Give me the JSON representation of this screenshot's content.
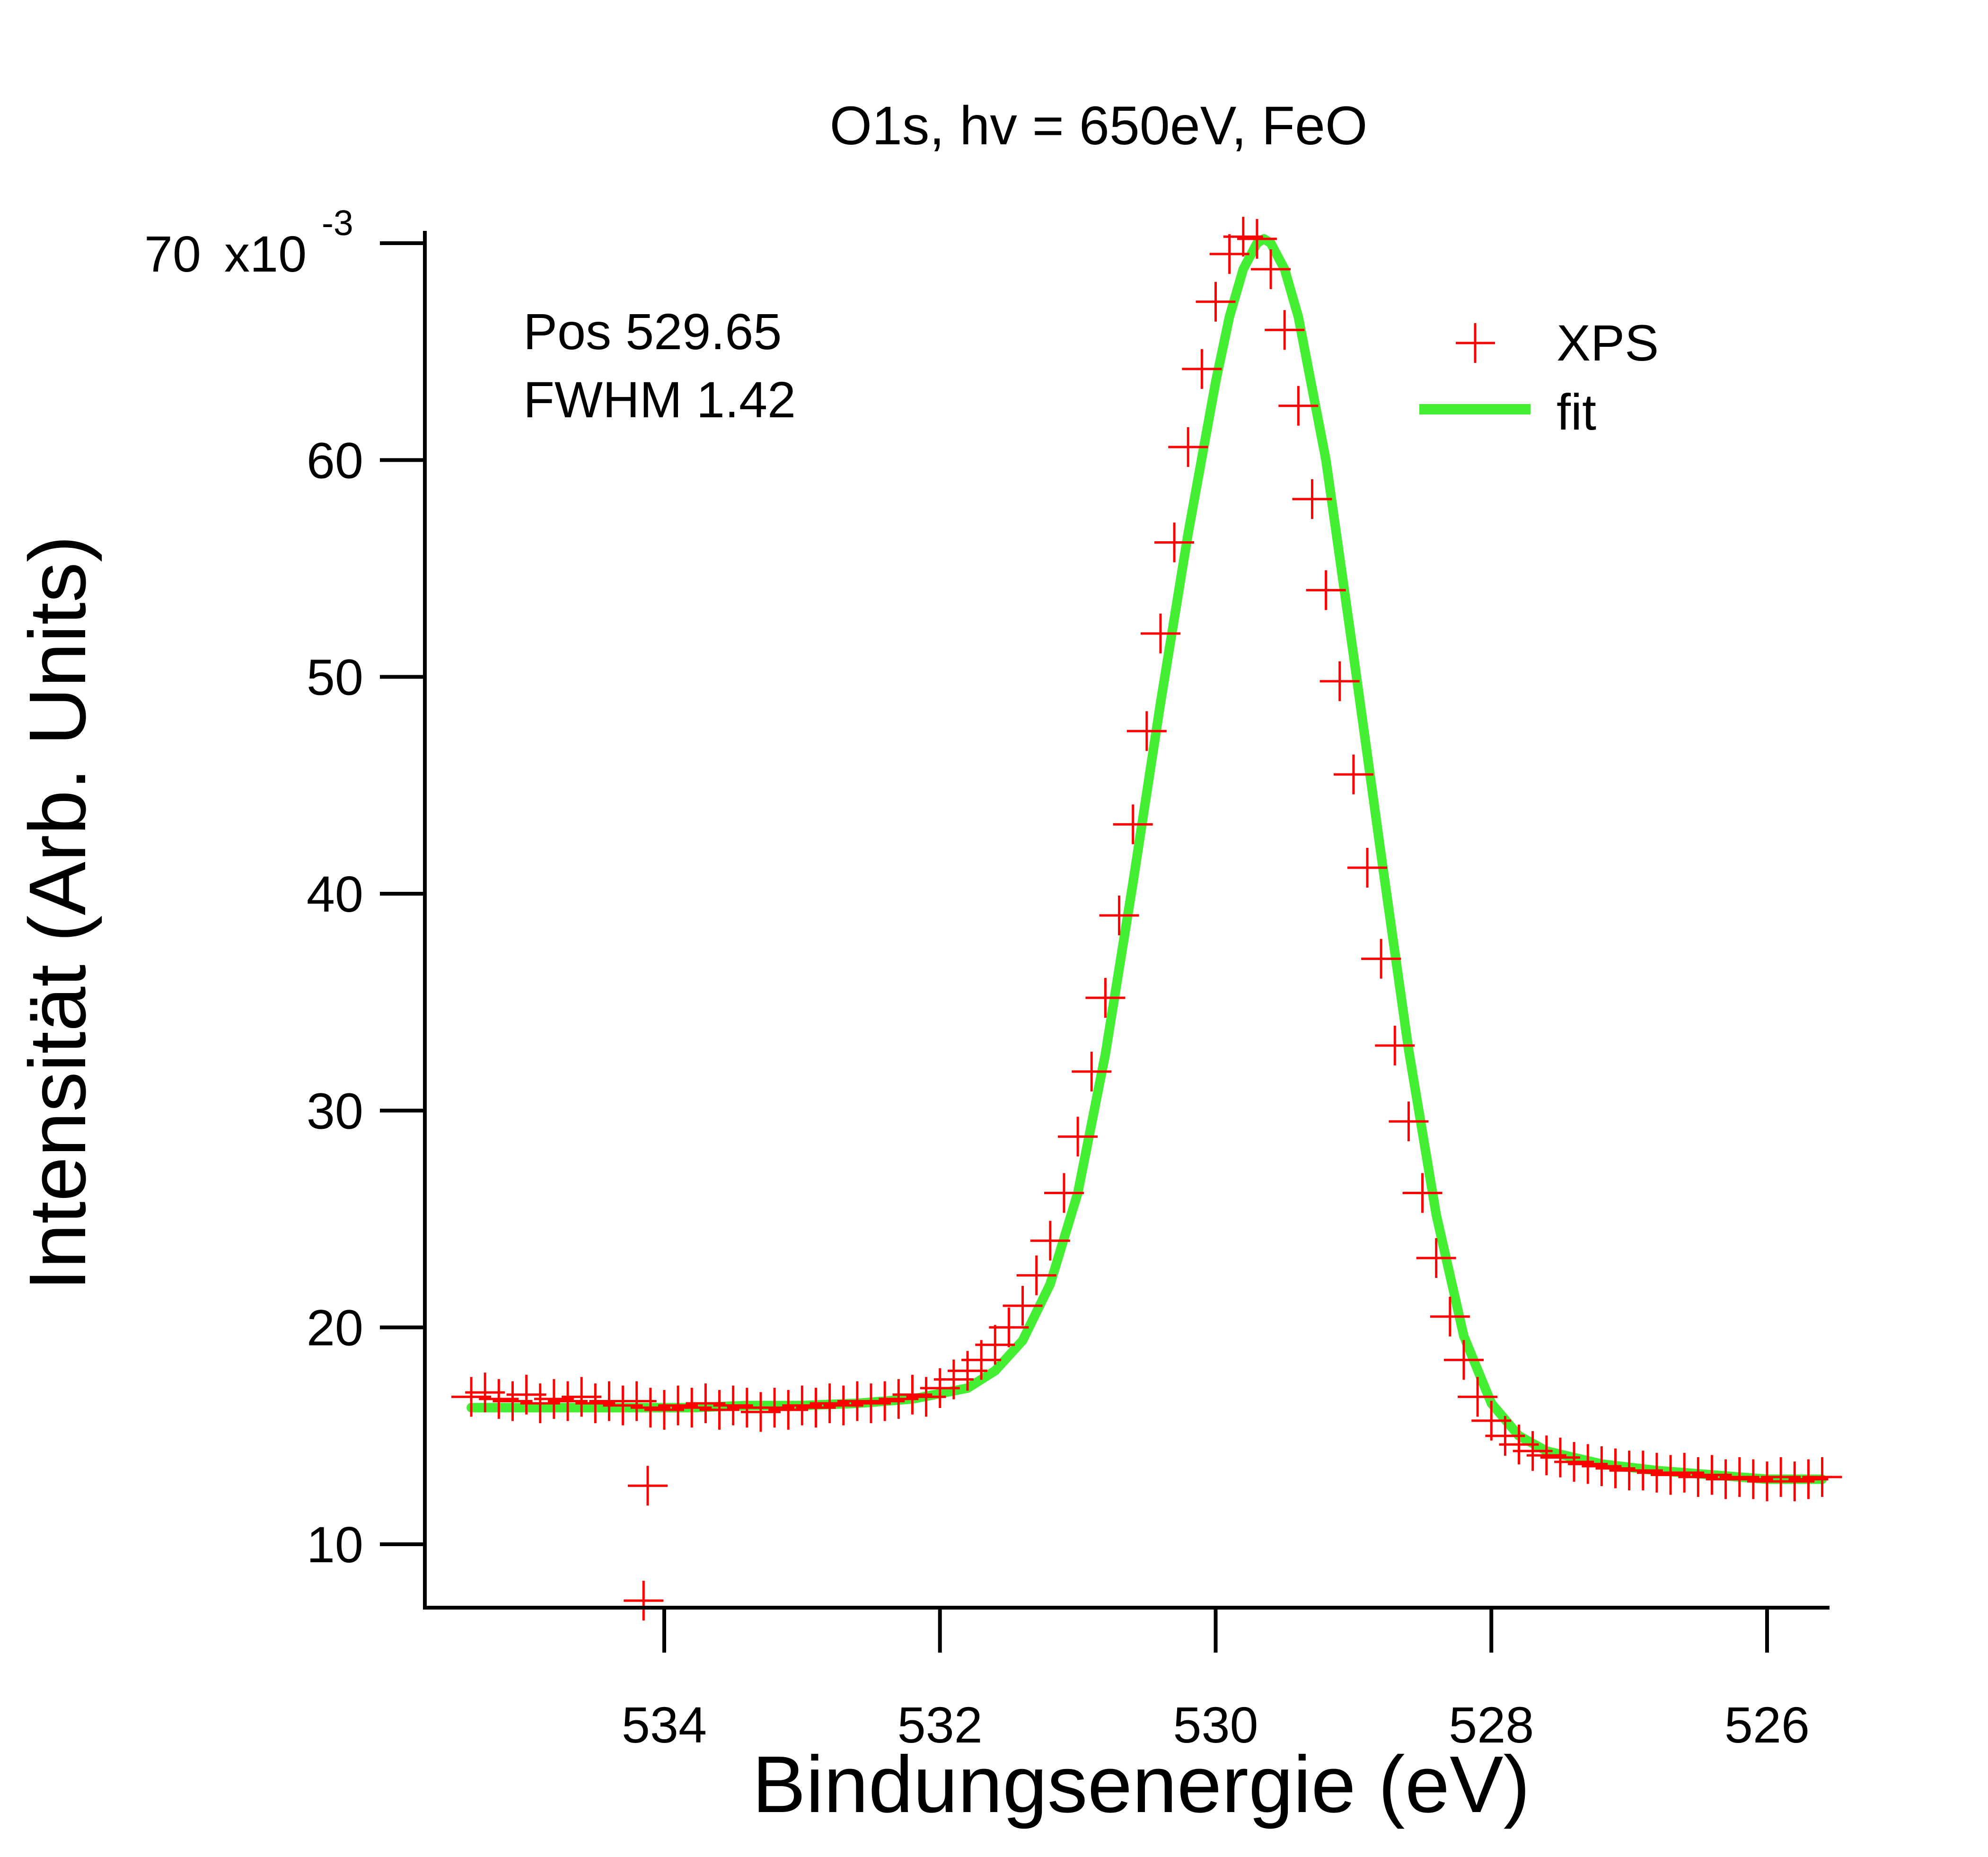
{
  "chart_data": {
    "type": "scatter",
    "title": "O1s, hv = 650eV, FeO",
    "xlabel": "Bindungsenergie (eV)",
    "ylabel": "Intensität (Arb. Units)",
    "x_reversed": true,
    "xlim": [
      535.5,
      525.5
    ],
    "ylim": [
      0.0062,
      0.0708
    ],
    "x_ticks": [
      534,
      532,
      530,
      528,
      526
    ],
    "x_tick_labels": [
      "534",
      "532",
      "530",
      "528",
      "526"
    ],
    "y_ticks": [
      0.01,
      0.02,
      0.03,
      0.04,
      0.05,
      0.06,
      0.07
    ],
    "y_tick_labels": [
      "10",
      "20",
      "30",
      "40",
      "50",
      "60",
      "70"
    ],
    "y_multiplier_label": "x10",
    "y_multiplier_exponent": "-3",
    "annotations": [
      "Pos 529.65",
      "FWHM 1.42"
    ],
    "legend_position": "top-right",
    "series": [
      {
        "name": "XPS",
        "marker": "+",
        "color": "#ff0000",
        "x": [
          535.4,
          535.3,
          535.2,
          535.1,
          535.0,
          534.9,
          534.8,
          534.7,
          534.6,
          534.5,
          534.4,
          534.3,
          534.2,
          534.1,
          534.0,
          533.9,
          533.8,
          533.7,
          533.6,
          533.5,
          533.4,
          533.3,
          533.2,
          533.1,
          533.0,
          532.9,
          532.8,
          532.7,
          532.6,
          532.5,
          532.4,
          532.3,
          532.2,
          532.1,
          532.0,
          531.9,
          531.8,
          531.7,
          531.6,
          531.5,
          531.4,
          531.3,
          531.2,
          531.1,
          531.0,
          530.9,
          530.8,
          530.7,
          530.6,
          530.5,
          530.4,
          530.3,
          530.2,
          530.1,
          530.0,
          529.9,
          529.8,
          529.7,
          529.6,
          529.5,
          529.4,
          529.3,
          529.2,
          529.1,
          529.0,
          528.9,
          528.8,
          528.7,
          528.6,
          528.5,
          528.4,
          528.3,
          528.2,
          528.1,
          528.0,
          527.9,
          527.8,
          527.7,
          527.6,
          527.5,
          527.4,
          527.3,
          527.2,
          527.1,
          527.0,
          526.9,
          526.8,
          526.7,
          526.6,
          526.5,
          526.4,
          526.3,
          526.2,
          526.1,
          526.0,
          525.9,
          525.8,
          525.7,
          525.6,
          534.12,
          534.15
        ],
        "y": [
          0.0168,
          0.017,
          0.0167,
          0.0166,
          0.0169,
          0.0165,
          0.0167,
          0.0166,
          0.0168,
          0.0165,
          0.0166,
          0.0164,
          0.0166,
          0.0163,
          0.0162,
          0.0164,
          0.0163,
          0.0165,
          0.0162,
          0.0164,
          0.0163,
          0.0161,
          0.0163,
          0.0162,
          0.0164,
          0.0163,
          0.0165,
          0.0164,
          0.0166,
          0.0165,
          0.0166,
          0.0167,
          0.0169,
          0.0168,
          0.0172,
          0.0176,
          0.018,
          0.0185,
          0.0192,
          0.02,
          0.021,
          0.0224,
          0.024,
          0.0262,
          0.0288,
          0.0318,
          0.0352,
          0.039,
          0.0432,
          0.0475,
          0.052,
          0.0562,
          0.0606,
          0.0642,
          0.0673,
          0.0695,
          0.0703,
          0.0702,
          0.0688,
          0.066,
          0.0625,
          0.0582,
          0.054,
          0.0498,
          0.0455,
          0.0412,
          0.037,
          0.033,
          0.0295,
          0.0262,
          0.0232,
          0.0205,
          0.0185,
          0.0168,
          0.0157,
          0.015,
          0.0146,
          0.0143,
          0.0141,
          0.014,
          0.0138,
          0.0137,
          0.0136,
          0.0135,
          0.0134,
          0.0134,
          0.0133,
          0.0132,
          0.0133,
          0.0131,
          0.0132,
          0.013,
          0.0131,
          0.013,
          0.0129,
          0.0131,
          0.0129,
          0.013,
          0.0131,
          0.0127,
          0.0074
        ]
      },
      {
        "name": "fit",
        "line": true,
        "color": "#44ee33",
        "peak_position": 529.65,
        "fwhm": 1.42,
        "x": [
          535.4,
          535.0,
          534.6,
          534.2,
          533.8,
          533.4,
          533.0,
          532.6,
          532.2,
          531.8,
          531.6,
          531.4,
          531.2,
          531.0,
          530.8,
          530.6,
          530.4,
          530.2,
          530.0,
          529.9,
          529.8,
          529.7,
          529.65,
          529.6,
          529.5,
          529.4,
          529.2,
          529.0,
          528.8,
          528.6,
          528.4,
          528.2,
          528.0,
          527.8,
          527.6,
          527.2,
          526.8,
          526.4,
          526.0,
          525.6
        ],
        "y": [
          0.0163,
          0.0163,
          0.0163,
          0.0163,
          0.0163,
          0.0164,
          0.0164,
          0.0165,
          0.0167,
          0.0172,
          0.018,
          0.0194,
          0.022,
          0.0262,
          0.0326,
          0.0405,
          0.0488,
          0.0566,
          0.0636,
          0.0666,
          0.0688,
          0.07,
          0.0702,
          0.07,
          0.0688,
          0.0666,
          0.06,
          0.051,
          0.0418,
          0.0328,
          0.0252,
          0.0196,
          0.0165,
          0.015,
          0.0143,
          0.0137,
          0.0134,
          0.0132,
          0.013,
          0.013
        ]
      }
    ]
  }
}
